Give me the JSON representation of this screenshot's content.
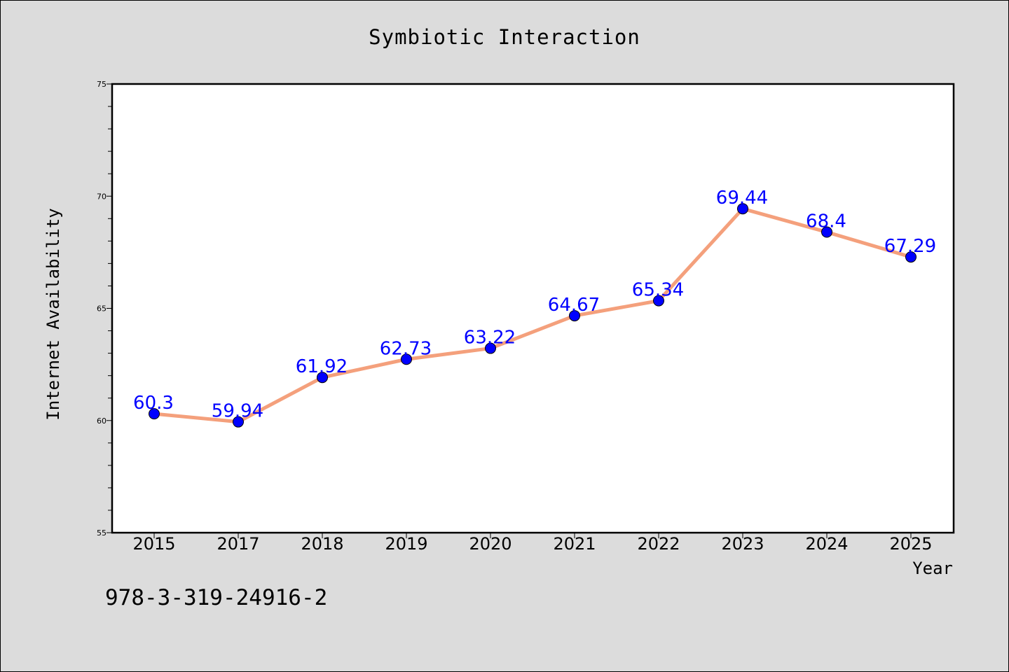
{
  "chart_data": {
    "type": "line",
    "title": "Symbiotic Interaction",
    "xlabel": "Year",
    "ylabel": "Internet Availability",
    "categories": [
      "2015",
      "2017",
      "2018",
      "2019",
      "2020",
      "2021",
      "2022",
      "2023",
      "2024",
      "2025"
    ],
    "series": [
      {
        "values": [
          60.3,
          59.94,
          61.92,
          62.73,
          63.22,
          64.67,
          65.34,
          69.44,
          68.4,
          67.29
        ],
        "data_labels": [
          "60.3",
          "59.94",
          "61.92",
          "62.73",
          "63.22",
          "64.67",
          "65.34",
          "69.44",
          "68.4",
          "67.29"
        ]
      }
    ],
    "ylim": [
      55,
      75
    ],
    "yticks": [
      55,
      60,
      65,
      70,
      75
    ],
    "ytick_labels": [
      "55",
      "60",
      "65",
      "70",
      "75"
    ],
    "grid": false,
    "line_color": "#f4a07c",
    "marker_color": "#0000ff",
    "label_color": "#0000ff"
  },
  "footer": {
    "code": "978-3-319-24916-2"
  },
  "colors": {
    "background": "#dcdcdc",
    "plot_background": "#ffffff"
  }
}
